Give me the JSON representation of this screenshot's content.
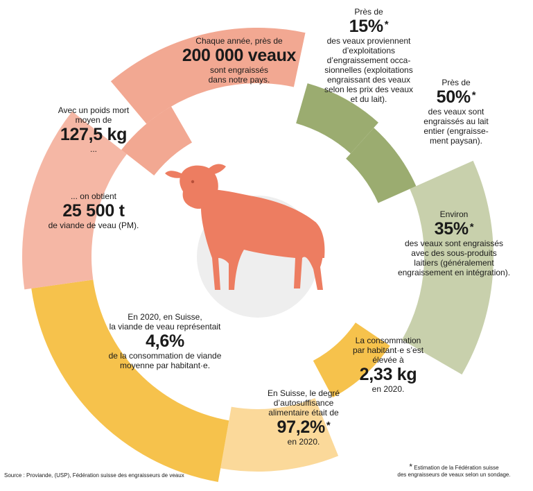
{
  "colors": {
    "salmon": "#f2a892",
    "salmon_light": "#f5b7a5",
    "olive": "#9bac70",
    "olive_light": "#c8d0ac",
    "yellow": "#f6c24c",
    "yellow_light": "#fbd99a",
    "calf": "#ed7d61",
    "center_shadow": "#e6e6e6"
  },
  "facts": {
    "calves": {
      "pre": "Chaque année, près de",
      "value": "200 000 veaux",
      "post_1": "sont engraissés",
      "post_2": "dans notre pays."
    },
    "weight": {
      "pre_1": "Avec un poids mort",
      "pre_2": "moyen de",
      "value": "127,5 kg",
      "post": "..."
    },
    "meat": {
      "pre": "... on obtient",
      "value": "25 500 t",
      "post": "de viande de veau (PM)."
    },
    "occasional": {
      "pre": "Près de",
      "value": "15%",
      "star": "*",
      "lines": [
        "des veaux proviennent",
        "d’exploitations",
        "d’engraissement occa-",
        "sionnelles (exploitations",
        "engraissant des veaux",
        "selon les prix des veaux",
        "et du lait)."
      ]
    },
    "whole_milk": {
      "pre": "Près de",
      "value": "50%",
      "star": "*",
      "lines": [
        "des veaux sont",
        "engraissés au lait",
        "entier (engraisse-",
        "ment paysan)."
      ]
    },
    "byproducts": {
      "pre": "Environ",
      "value": "35%",
      "star": "*",
      "lines": [
        "des veaux sont engraissés",
        "avec des sous-produits",
        "laitiers (généralement",
        "engraissement en intégration)."
      ]
    },
    "consumption": {
      "lines": [
        "La consommation",
        "par habitant·e s’est",
        "élevée à"
      ],
      "value": "2,33 kg",
      "post": "en 2020."
    },
    "self_sufficiency": {
      "lines": [
        "En Suisse, le degré",
        "d’autosuffisance",
        "alimentaire était de"
      ],
      "value": "97,2%",
      "star": "*",
      "post": "en 2020."
    },
    "share": {
      "lines": [
        "En 2020, en Suisse,",
        "la viande de veau représentait"
      ],
      "value": "4,6%",
      "post_1": "de la consommation de viande",
      "post_2": "moyenne par habitant·e."
    }
  },
  "source": "Source : Proviande, (USP), Fédération suisse des engraisseurs de veaux",
  "footnote": {
    "star": "*",
    "line_1": "Estimation de la Fédération suisse",
    "line_2": "des engraisseurs de veaux selon un sondage."
  }
}
